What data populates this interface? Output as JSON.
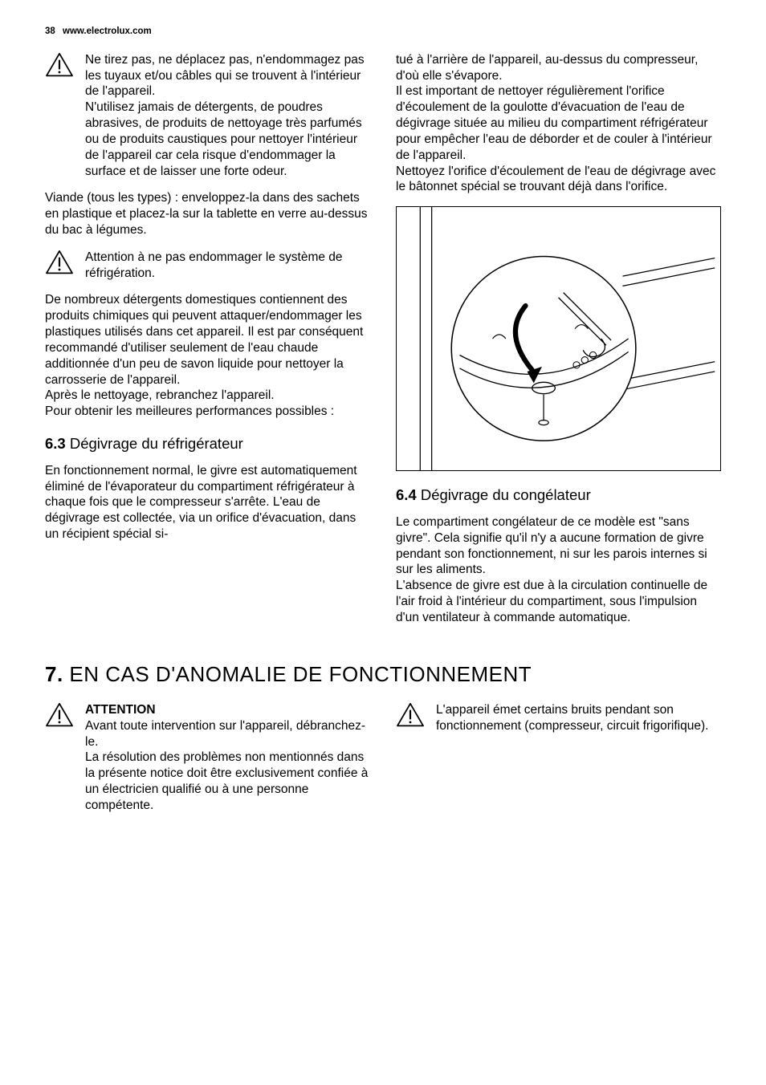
{
  "header": {
    "page_number": "38",
    "site": "www.electrolux.com"
  },
  "left_col": {
    "warn1": "Ne tirez pas, ne déplacez pas, n'endommagez pas les tuyaux et/ou câbles qui se trouvent à l'intérieur de l'appareil.\nN'utilisez jamais de détergents, de poudres abrasives, de produits de nettoyage très parfumés ou de produits caustiques pour nettoyer l'intérieur de l'appareil car cela risque d'endommager la surface et de laisser une forte odeur.",
    "p_meat": "Viande (tous les types) : enveloppez-la dans des sachets en plastique et placez-la sur la tablette en verre au-dessus du bac à légumes.",
    "warn2": "Attention à ne pas endommager le système de réfrigération.",
    "p_detergents": "De nombreux détergents domestiques contiennent des produits chimiques qui peuvent attaquer/endommager les plastiques utilisés dans cet appareil. Il est par conséquent recommandé d'utiliser seulement de l'eau chaude additionnée d'un peu de savon liquide pour nettoyer la carrosserie de l'appareil.",
    "p_after": "Après le nettoyage, rebranchez l'appareil.\nPour obtenir les meilleures performances possibles :",
    "h63_num": "6.3",
    "h63_title": " Dégivrage du réfrigérateur",
    "p_63": "En fonctionnement normal, le givre est automatiquement éliminé de l'évaporateur du compartiment réfrigérateur à chaque fois que le compresseur s'arrête. L'eau de dégivrage est collectée, via un orifice d'évacuation, dans un récipient spécial si-"
  },
  "right_col": {
    "p_cont": "tué à l'arrière de l'appareil, au-dessus du compresseur, d'où elle s'évapore.\nIl est important de nettoyer régulièrement l'orifice d'écoulement de la goulotte d'évacuation de l'eau de dégivrage située au milieu du compartiment réfrigérateur pour empêcher l'eau de déborder et de couler à l'intérieur de l'appareil.\nNettoyez l'orifice d'écoulement de l'eau de dégivrage avec le bâtonnet spécial se trouvant déjà dans l'orifice.",
    "h64_num": "6.4",
    "h64_title": " Dégivrage du congélateur",
    "p_64a": "Le compartiment congélateur de ce modèle est \"sans givre\". Cela signifie qu'il n'y a aucune formation de givre pendant son fonctionnement, ni sur les parois internes si sur les aliments.",
    "p_64b": "L'absence de givre est due à la circulation continuelle de l'air froid à l'intérieur du compartiment, sous l'impulsion d'un ventilateur à commande automatique."
  },
  "chapter7": {
    "num": "7.",
    "title": " EN CAS D'ANOMALIE DE FONCTIONNEMENT",
    "left": {
      "label": "ATTENTION",
      "text": "Avant toute intervention sur l'appareil, débranchez-le.\nLa résolution des problèmes non mentionnés dans la présente notice doit être exclusivement confiée à un électricien qualifié ou à une personne compétente."
    },
    "right": {
      "text": "L'appareil émet certains bruits pendant son fonctionnement (compresseur, circuit frigorifique)."
    }
  },
  "diagram": {
    "stroke": "#000000",
    "fill": "#ffffff"
  }
}
